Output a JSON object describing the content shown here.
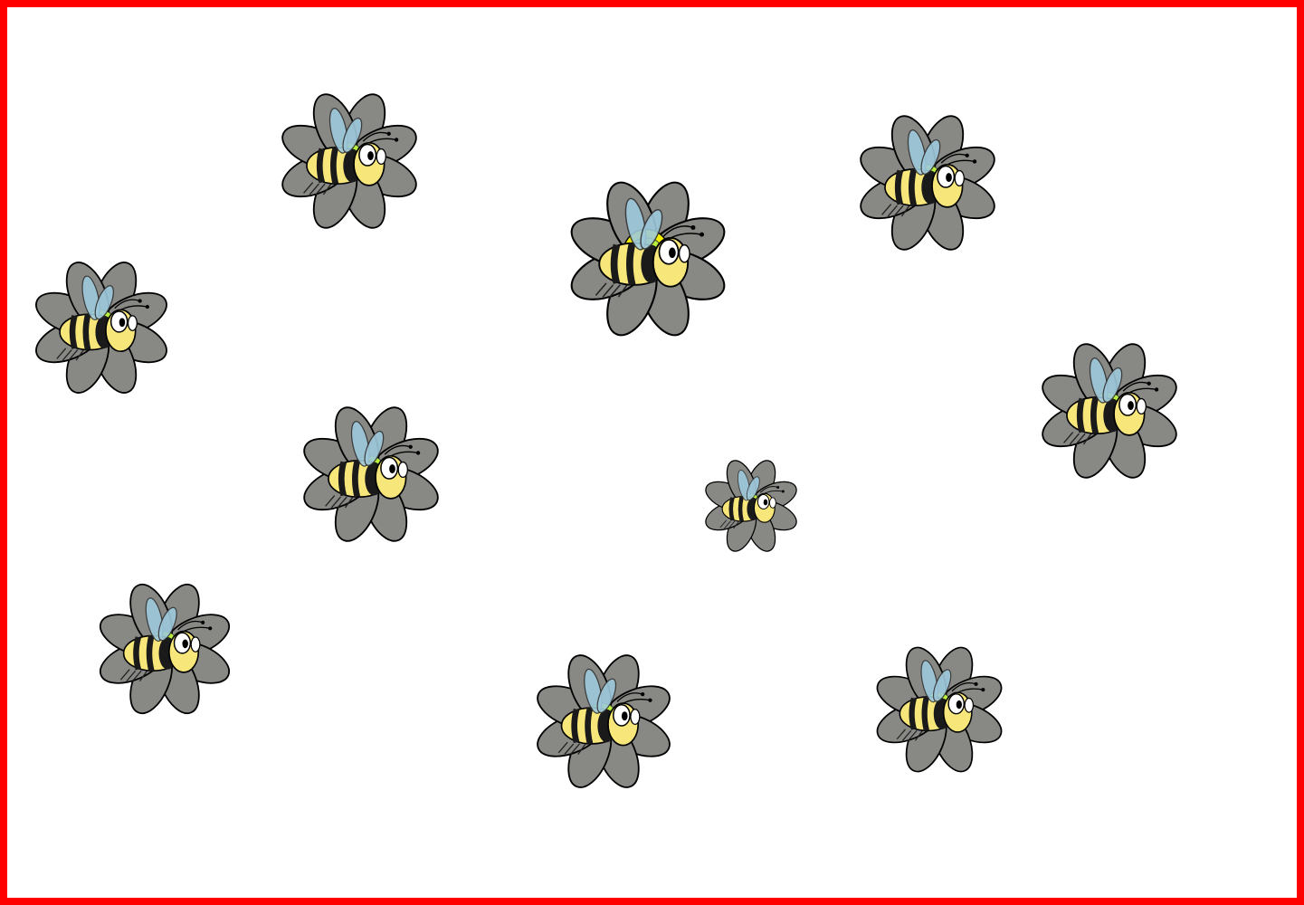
{
  "board": {
    "border_color": "#ff0000",
    "background": "#ffffff"
  },
  "palette": {
    "petal_fill": "#888885",
    "petal_stroke": "#000000",
    "bee_body": "#f7e67a",
    "bee_stripe": "#1a1a1a",
    "bee_wing": "#9ec9dc",
    "bee_back_highlight": "#b8ef3c",
    "highlight_center": "#f2f000"
  },
  "flowers": [
    {
      "icon": "flower-with-bee",
      "highlighted": false
    },
    {
      "icon": "flower-with-bee",
      "highlighted": true
    },
    {
      "icon": "flower-with-bee",
      "highlighted": false
    },
    {
      "icon": "flower-with-bee",
      "highlighted": false
    },
    {
      "icon": "flower-with-bee",
      "highlighted": false
    },
    {
      "icon": "flower-with-bee",
      "highlighted": false
    },
    {
      "icon": "flower-with-bee",
      "highlighted": false
    },
    {
      "icon": "flower-with-bee",
      "highlighted": false
    },
    {
      "icon": "flower-with-bee",
      "highlighted": false
    },
    {
      "icon": "flower-with-bee",
      "highlighted": false
    }
  ]
}
